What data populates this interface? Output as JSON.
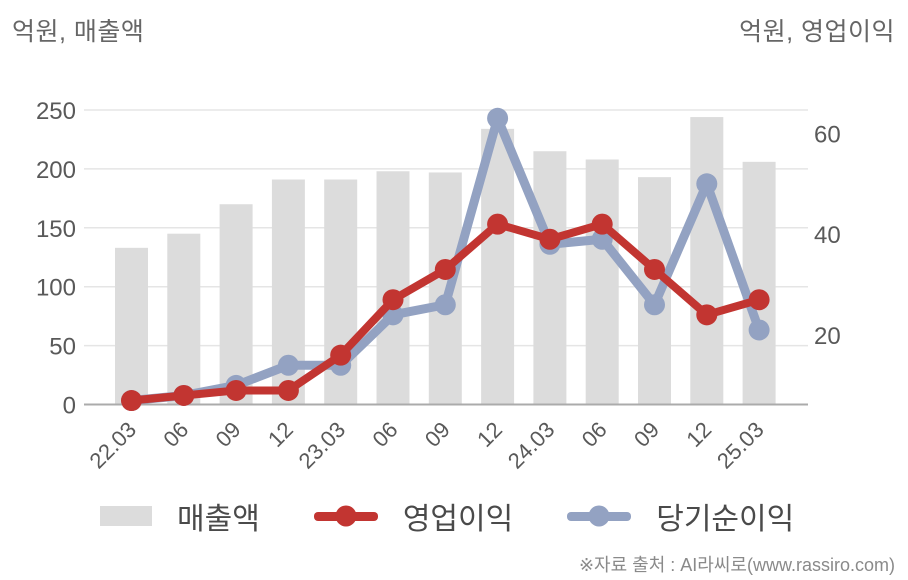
{
  "page": {
    "source_note": "※자료 출처 : AI라씨로(www.rassiro.com)"
  },
  "chart_data": {
    "type": "bar+line",
    "title": "",
    "categories": [
      "22.03",
      "06",
      "09",
      "12",
      "23.03",
      "06",
      "09",
      "12",
      "24.03",
      "06",
      "09",
      "12",
      "25.03"
    ],
    "series": [
      {
        "name": "매출액",
        "type": "bar",
        "axis": "left",
        "color": "#dcdcdc",
        "values": [
          133,
          145,
          170,
          191,
          191,
          198,
          197,
          234,
          215,
          208,
          193,
          244,
          206
        ]
      },
      {
        "name": "영업이익",
        "type": "line",
        "axis": "right",
        "color": "#c23531",
        "values": [
          7,
          8,
          9,
          9,
          16,
          27,
          33,
          42,
          39,
          42,
          33,
          24,
          27
        ]
      },
      {
        "name": "당기순이익",
        "type": "line",
        "axis": "right",
        "color": "#93a2c2",
        "values": [
          7,
          8,
          10,
          14,
          14,
          24,
          26,
          63,
          38,
          39,
          26,
          50,
          21
        ]
      }
    ],
    "left_axis": {
      "title": "억원, 매출액",
      "ticks": [
        0,
        50,
        100,
        150,
        200,
        250
      ],
      "range": [
        0,
        250
      ]
    },
    "right_axis": {
      "title": "억원, 영업이익",
      "ticks": [
        20,
        40,
        60
      ]
    },
    "grid": "horizontal",
    "legend_position": "bottom",
    "tick_label_color": "#595959"
  }
}
